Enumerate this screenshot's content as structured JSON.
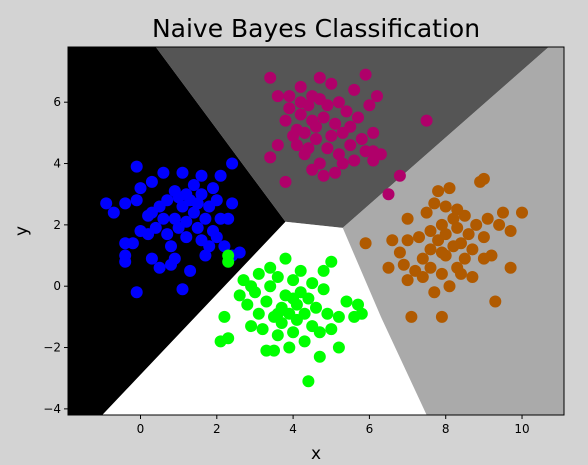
{
  "chart_data": {
    "type": "scatter",
    "title": "Naive Bayes Classification",
    "xlabel": "x",
    "ylabel": "y",
    "xlim": [
      -1.9,
      11.1
    ],
    "ylim": [
      -4.2,
      7.8
    ],
    "x_ticks": [
      0,
      2,
      4,
      6,
      8,
      10
    ],
    "y_ticks": [
      -4,
      -2,
      0,
      2,
      4,
      6
    ],
    "x_tick_labels": [
      "0",
      "2",
      "4",
      "6",
      "8",
      "10"
    ],
    "y_tick_labels": [
      "−4",
      "−2",
      "0",
      "2",
      "4",
      "6"
    ],
    "grid": false,
    "legend": "none",
    "colors": {
      "figure_bg": "#d3d3d3",
      "region_blue": "#000000",
      "region_magenta": "#555555",
      "region_orange": "#aaaaaa",
      "region_green": "#ffffff",
      "blue": "#0000ff",
      "green": "#00ff00",
      "magenta": "#b0006a",
      "orange": "#b05a00"
    },
    "decision_regions": [
      {
        "class": "blue",
        "polygon": [
          [
            -1.9,
            7.8
          ],
          [
            0.4,
            7.8
          ],
          [
            3.8,
            2.1
          ],
          [
            -1.0,
            -4.2
          ],
          [
            -1.9,
            -4.2
          ]
        ]
      },
      {
        "class": "magenta",
        "polygon": [
          [
            0.4,
            7.8
          ],
          [
            10.7,
            7.8
          ],
          [
            5.3,
            1.9
          ],
          [
            3.8,
            2.1
          ]
        ]
      },
      {
        "class": "orange",
        "polygon": [
          [
            10.7,
            7.8
          ],
          [
            11.1,
            7.8
          ],
          [
            11.1,
            -4.2
          ],
          [
            7.5,
            -4.2
          ],
          [
            6.3,
            -1.0
          ],
          [
            5.3,
            1.9
          ]
        ]
      },
      {
        "class": "green",
        "polygon": [
          [
            3.8,
            2.1
          ],
          [
            5.3,
            1.9
          ],
          [
            6.3,
            -1.0
          ],
          [
            7.5,
            -4.2
          ],
          [
            -1.0,
            -4.2
          ]
        ]
      }
    ],
    "series": [
      {
        "color_key": "blue",
        "points": [
          [
            -0.9,
            2.7
          ],
          [
            -0.7,
            2.4
          ],
          [
            -0.4,
            2.7
          ],
          [
            -0.4,
            1.4
          ],
          [
            -0.2,
            1.4
          ],
          [
            -0.4,
            1.0
          ],
          [
            -0.4,
            0.8
          ],
          [
            -0.1,
            2.8
          ],
          [
            -0.1,
            3.9
          ],
          [
            0.0,
            3.2
          ],
          [
            -0.1,
            -0.2
          ],
          [
            0.3,
            3.4
          ],
          [
            0.3,
            2.4
          ],
          [
            0.2,
            1.7
          ],
          [
            0.3,
            0.9
          ],
          [
            0.4,
            1.9
          ],
          [
            0.5,
            2.6
          ],
          [
            0.6,
            2.2
          ],
          [
            0.5,
            0.6
          ],
          [
            0.6,
            3.7
          ],
          [
            0.7,
            1.7
          ],
          [
            0.7,
            2.8
          ],
          [
            0.8,
            0.7
          ],
          [
            0.8,
            1.3
          ],
          [
            0.9,
            3.1
          ],
          [
            0.9,
            2.2
          ],
          [
            1.0,
            1.9
          ],
          [
            1.0,
            2.9
          ],
          [
            1.1,
            3.7
          ],
          [
            1.1,
            -0.1
          ],
          [
            1.1,
            2.6
          ],
          [
            1.2,
            3.0
          ],
          [
            1.2,
            1.6
          ],
          [
            1.2,
            2.1
          ],
          [
            1.3,
            2.8
          ],
          [
            1.3,
            0.5
          ],
          [
            1.4,
            2.4
          ],
          [
            1.4,
            3.3
          ],
          [
            1.5,
            1.9
          ],
          [
            1.5,
            2.7
          ],
          [
            1.6,
            1.5
          ],
          [
            1.6,
            3.0
          ],
          [
            1.7,
            1.0
          ],
          [
            1.7,
            2.2
          ],
          [
            1.8,
            1.3
          ],
          [
            1.8,
            2.6
          ],
          [
            1.9,
            3.2
          ],
          [
            1.9,
            1.8
          ],
          [
            2.0,
            2.8
          ],
          [
            2.0,
            1.6
          ],
          [
            2.1,
            2.2
          ],
          [
            2.1,
            3.6
          ],
          [
            2.2,
            1.3
          ],
          [
            2.3,
            2.2
          ],
          [
            2.4,
            1.0
          ],
          [
            2.4,
            2.7
          ],
          [
            2.4,
            4.0
          ],
          [
            2.6,
            1.1
          ],
          [
            0.0,
            1.8
          ],
          [
            0.9,
            0.9
          ],
          [
            0.2,
            2.3
          ],
          [
            1.6,
            3.6
          ]
        ]
      },
      {
        "color_key": "magenta",
        "points": [
          [
            3.4,
            6.8
          ],
          [
            3.6,
            6.2
          ],
          [
            3.4,
            4.2
          ],
          [
            3.6,
            4.6
          ],
          [
            3.8,
            5.4
          ],
          [
            3.8,
            3.4
          ],
          [
            3.9,
            5.8
          ],
          [
            3.9,
            6.2
          ],
          [
            4.0,
            4.9
          ],
          [
            4.1,
            5.1
          ],
          [
            4.1,
            4.6
          ],
          [
            4.2,
            5.6
          ],
          [
            4.2,
            6.5
          ],
          [
            4.3,
            4.3
          ],
          [
            4.3,
            5.0
          ],
          [
            4.4,
            5.9
          ],
          [
            4.4,
            4.5
          ],
          [
            4.5,
            5.4
          ],
          [
            4.5,
            3.8
          ],
          [
            4.5,
            6.2
          ],
          [
            4.6,
            4.8
          ],
          [
            4.6,
            5.2
          ],
          [
            4.7,
            6.1
          ],
          [
            4.7,
            4.0
          ],
          [
            4.7,
            6.8
          ],
          [
            4.8,
            5.5
          ],
          [
            4.8,
            3.6
          ],
          [
            4.9,
            4.5
          ],
          [
            4.9,
            5.9
          ],
          [
            5.0,
            4.9
          ],
          [
            5.0,
            6.6
          ],
          [
            5.1,
            5.3
          ],
          [
            5.1,
            3.7
          ],
          [
            5.2,
            4.3
          ],
          [
            5.2,
            6.0
          ],
          [
            5.3,
            5.0
          ],
          [
            5.3,
            4.0
          ],
          [
            5.4,
            5.7
          ],
          [
            5.5,
            4.6
          ],
          [
            5.5,
            5.2
          ],
          [
            5.6,
            6.4
          ],
          [
            5.6,
            4.1
          ],
          [
            5.7,
            5.5
          ],
          [
            5.8,
            4.8
          ],
          [
            5.9,
            6.9
          ],
          [
            5.9,
            4.4
          ],
          [
            6.0,
            5.9
          ],
          [
            6.1,
            4.1
          ],
          [
            6.1,
            5.0
          ],
          [
            6.2,
            6.2
          ],
          [
            6.3,
            4.3
          ],
          [
            6.5,
            3.0
          ],
          [
            6.8,
            3.6
          ],
          [
            7.5,
            5.4
          ],
          [
            6.1,
            4.4
          ],
          [
            4.2,
            6.0
          ]
        ]
      },
      {
        "color_key": "orange",
        "points": [
          [
            5.9,
            1.4
          ],
          [
            6.5,
            0.6
          ],
          [
            6.6,
            1.5
          ],
          [
            6.8,
            1.1
          ],
          [
            6.9,
            0.7
          ],
          [
            7.0,
            0.2
          ],
          [
            7.0,
            2.2
          ],
          [
            7.0,
            1.5
          ],
          [
            7.1,
            -1.0
          ],
          [
            7.2,
            0.5
          ],
          [
            7.3,
            1.6
          ],
          [
            7.4,
            0.9
          ],
          [
            7.4,
            0.3
          ],
          [
            7.5,
            2.4
          ],
          [
            7.6,
            1.8
          ],
          [
            7.6,
            1.2
          ],
          [
            7.6,
            0.6
          ],
          [
            7.7,
            -0.2
          ],
          [
            7.7,
            2.7
          ],
          [
            7.8,
            3.1
          ],
          [
            7.8,
            1.5
          ],
          [
            7.9,
            0.4
          ],
          [
            7.9,
            2.0
          ],
          [
            7.9,
            -1.0
          ],
          [
            8.0,
            1.0
          ],
          [
            8.0,
            2.6
          ],
          [
            8.0,
            1.7
          ],
          [
            8.1,
            0.0
          ],
          [
            8.1,
            3.2
          ],
          [
            8.2,
            1.3
          ],
          [
            8.2,
            2.2
          ],
          [
            8.3,
            0.6
          ],
          [
            8.3,
            1.9
          ],
          [
            8.3,
            2.5
          ],
          [
            8.4,
            1.4
          ],
          [
            8.5,
            0.9
          ],
          [
            8.5,
            2.3
          ],
          [
            8.6,
            1.7
          ],
          [
            8.7,
            0.3
          ],
          [
            8.7,
            1.2
          ],
          [
            8.8,
            2.0
          ],
          [
            8.9,
            3.4
          ],
          [
            9.0,
            0.9
          ],
          [
            9.0,
            3.5
          ],
          [
            9.0,
            1.6
          ],
          [
            9.1,
            2.2
          ],
          [
            9.2,
            1.0
          ],
          [
            9.3,
            -0.5
          ],
          [
            9.4,
            2.0
          ],
          [
            9.5,
            2.4
          ],
          [
            9.7,
            0.6
          ],
          [
            9.7,
            1.8
          ],
          [
            10.0,
            2.4
          ],
          [
            8.4,
            0.4
          ],
          [
            7.9,
            1.1
          ]
        ]
      },
      {
        "color_key": "green",
        "points": [
          [
            2.1,
            -1.8
          ],
          [
            2.2,
            -1.0
          ],
          [
            2.3,
            -1.7
          ],
          [
            2.3,
            0.8
          ],
          [
            2.6,
            -0.3
          ],
          [
            2.7,
            0.2
          ],
          [
            2.8,
            -0.6
          ],
          [
            2.9,
            -1.3
          ],
          [
            2.9,
            0.0
          ],
          [
            3.0,
            -0.2
          ],
          [
            3.1,
            -0.9
          ],
          [
            3.1,
            0.4
          ],
          [
            3.2,
            -1.4
          ],
          [
            3.3,
            -2.1
          ],
          [
            3.3,
            -0.5
          ],
          [
            3.4,
            0.6
          ],
          [
            3.4,
            0.0
          ],
          [
            3.5,
            -1.0
          ],
          [
            3.5,
            -2.1
          ],
          [
            3.6,
            -1.6
          ],
          [
            3.6,
            0.3
          ],
          [
            3.7,
            -0.7
          ],
          [
            3.7,
            -1.2
          ],
          [
            3.8,
            0.9
          ],
          [
            3.8,
            -0.3
          ],
          [
            3.9,
            -2.0
          ],
          [
            3.9,
            -0.9
          ],
          [
            4.0,
            -1.5
          ],
          [
            4.0,
            0.2
          ],
          [
            4.1,
            -0.6
          ],
          [
            4.1,
            -1.1
          ],
          [
            4.2,
            -0.2
          ],
          [
            4.2,
            0.5
          ],
          [
            4.3,
            -1.8
          ],
          [
            4.3,
            -0.9
          ],
          [
            4.4,
            -3.1
          ],
          [
            4.4,
            -0.4
          ],
          [
            4.5,
            -1.3
          ],
          [
            4.5,
            0.1
          ],
          [
            4.6,
            -0.7
          ],
          [
            4.7,
            -1.5
          ],
          [
            4.7,
            -2.3
          ],
          [
            4.8,
            -0.1
          ],
          [
            4.8,
            0.5
          ],
          [
            4.9,
            -0.9
          ],
          [
            5.0,
            -1.4
          ],
          [
            5.0,
            0.8
          ],
          [
            5.2,
            -1.0
          ],
          [
            5.2,
            -2.0
          ],
          [
            5.4,
            -0.5
          ],
          [
            5.6,
            -1.0
          ],
          [
            5.7,
            -0.6
          ],
          [
            5.8,
            -0.9
          ],
          [
            2.3,
            1.0
          ],
          [
            4.0,
            -0.4
          ],
          [
            3.6,
            -0.9
          ]
        ]
      }
    ]
  }
}
